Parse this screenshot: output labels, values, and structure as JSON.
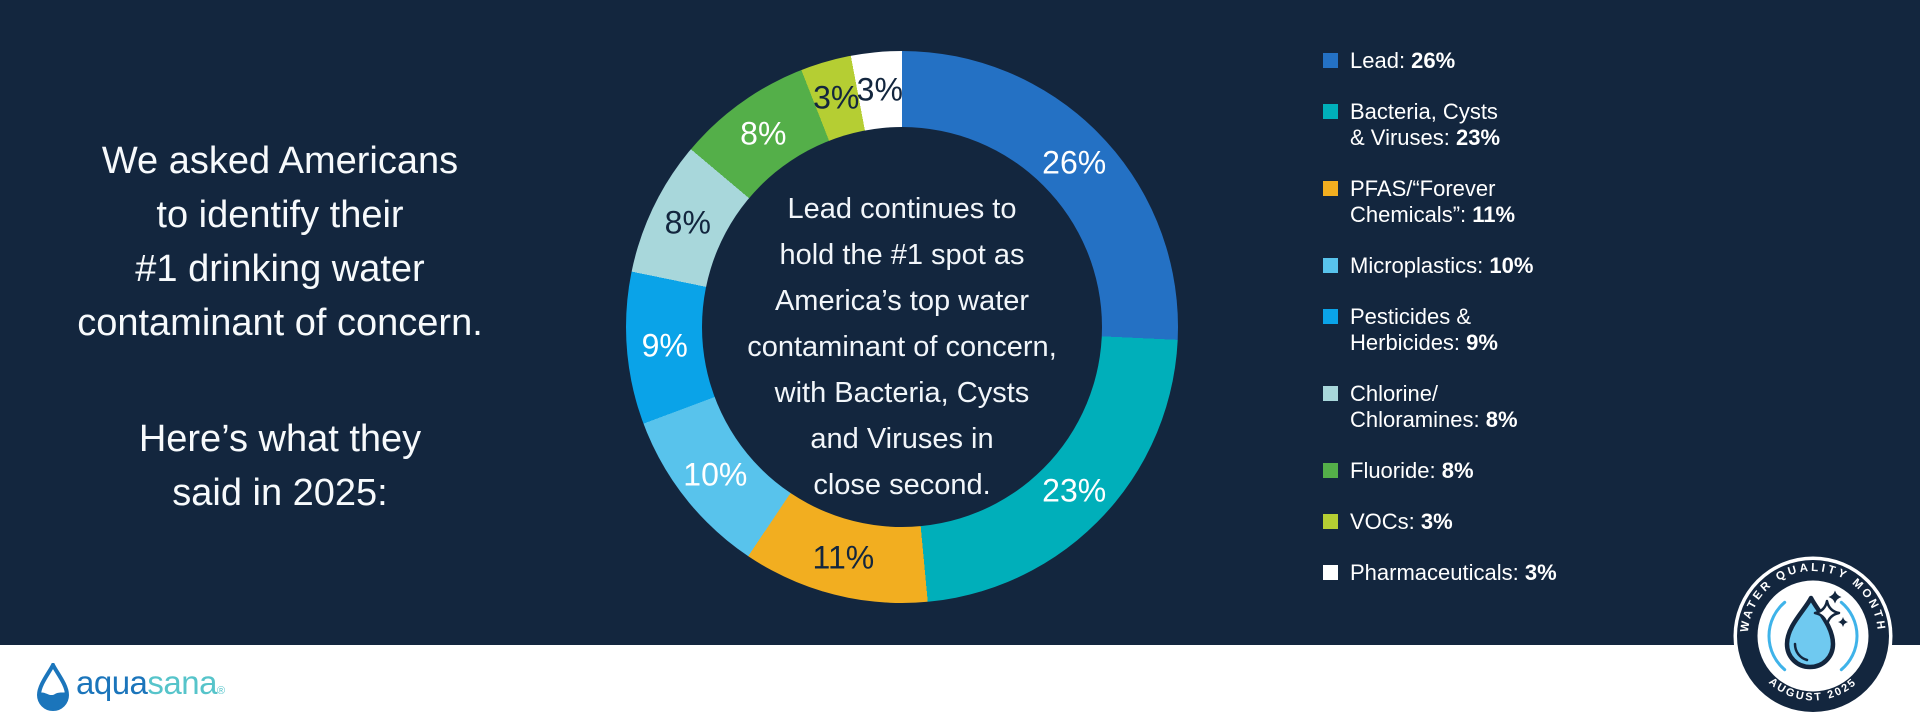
{
  "page": {
    "background": "#13263E",
    "strip_color": "#FFFFFF"
  },
  "intro": {
    "paragraph1": "We asked Americans\nto identify their\n#1 drinking water\ncontaminant of concern.",
    "paragraph2": "Here’s what they\nsaid in 2025:"
  },
  "chart_data": {
    "type": "pie",
    "variant": "donut",
    "start_angle_deg": 0,
    "direction": "clockwise",
    "center_text": "Lead continues to\nhold the #1 spot as\nAmerica’s top water\ncontaminant of concern,\nwith Bacteria, Cysts\nand Viruses in\nclose second.",
    "series": [
      {
        "name": "Lead",
        "value": 26,
        "color": "#2471C4",
        "label": "26%",
        "label_color": "#FFFFFF"
      },
      {
        "name": "Bacteria, Cysts & Viruses",
        "value": 23,
        "color": "#00AFBA",
        "label": "23%",
        "label_color": "#FFFFFF"
      },
      {
        "name": "PFAS/“Forever Chemicals”",
        "value": 11,
        "color": "#F2AE20",
        "label": "11%",
        "label_color": "#13263E"
      },
      {
        "name": "Microplastics",
        "value": 10,
        "color": "#58C3EC",
        "label": "10%",
        "label_color": "#FFFFFF"
      },
      {
        "name": "Pesticides & Herbicides",
        "value": 9,
        "color": "#0AA3E8",
        "label": "9%",
        "label_color": "#FFFFFF"
      },
      {
        "name": "Chlorine/Chloramines",
        "value": 8,
        "color": "#A8D7DB",
        "label": "8%",
        "label_color": "#13263E"
      },
      {
        "name": "Fluoride",
        "value": 8,
        "color": "#54AF49",
        "label": "8%",
        "label_color": "#FFFFFF"
      },
      {
        "name": "VOCs",
        "value": 3,
        "color": "#B5CE33",
        "label": "3%",
        "label_color": "#13263E"
      },
      {
        "name": "Pharmaceuticals",
        "value": 3,
        "color": "#FFFFFF",
        "label": "3%",
        "label_color": "#13263E"
      }
    ]
  },
  "legend": {
    "items": [
      {
        "label": "Lead:",
        "value": "26%",
        "color": "#2471C4"
      },
      {
        "label": "Bacteria, Cysts\n& Viruses:",
        "value": "23%",
        "color": "#00AFBA"
      },
      {
        "label": "PFAS/“Forever\nChemicals”:",
        "value": "11%",
        "color": "#F2AE20"
      },
      {
        "label": "Microplastics:",
        "value": "10%",
        "color": "#58C3EC"
      },
      {
        "label": "Pesticides &\nHerbicides:",
        "value": "9%",
        "color": "#0AA3E8"
      },
      {
        "label": "Chlorine/\nChloramines:",
        "value": "8%",
        "color": "#A8D7DB"
      },
      {
        "label": "Fluoride:",
        "value": "8%",
        "color": "#54AF49"
      },
      {
        "label": "VOCs:",
        "value": "3%",
        "color": "#B5CE33"
      },
      {
        "label": "Pharmaceuticals:",
        "value": "3%",
        "color": "#FFFFFF"
      }
    ]
  },
  "logo": {
    "aqua": "aqua",
    "sana": "sana",
    "mark": "®"
  },
  "badge": {
    "arc_top": "WATER QUALITY MONTH",
    "arc_bottom": "AUGUST 2025"
  }
}
